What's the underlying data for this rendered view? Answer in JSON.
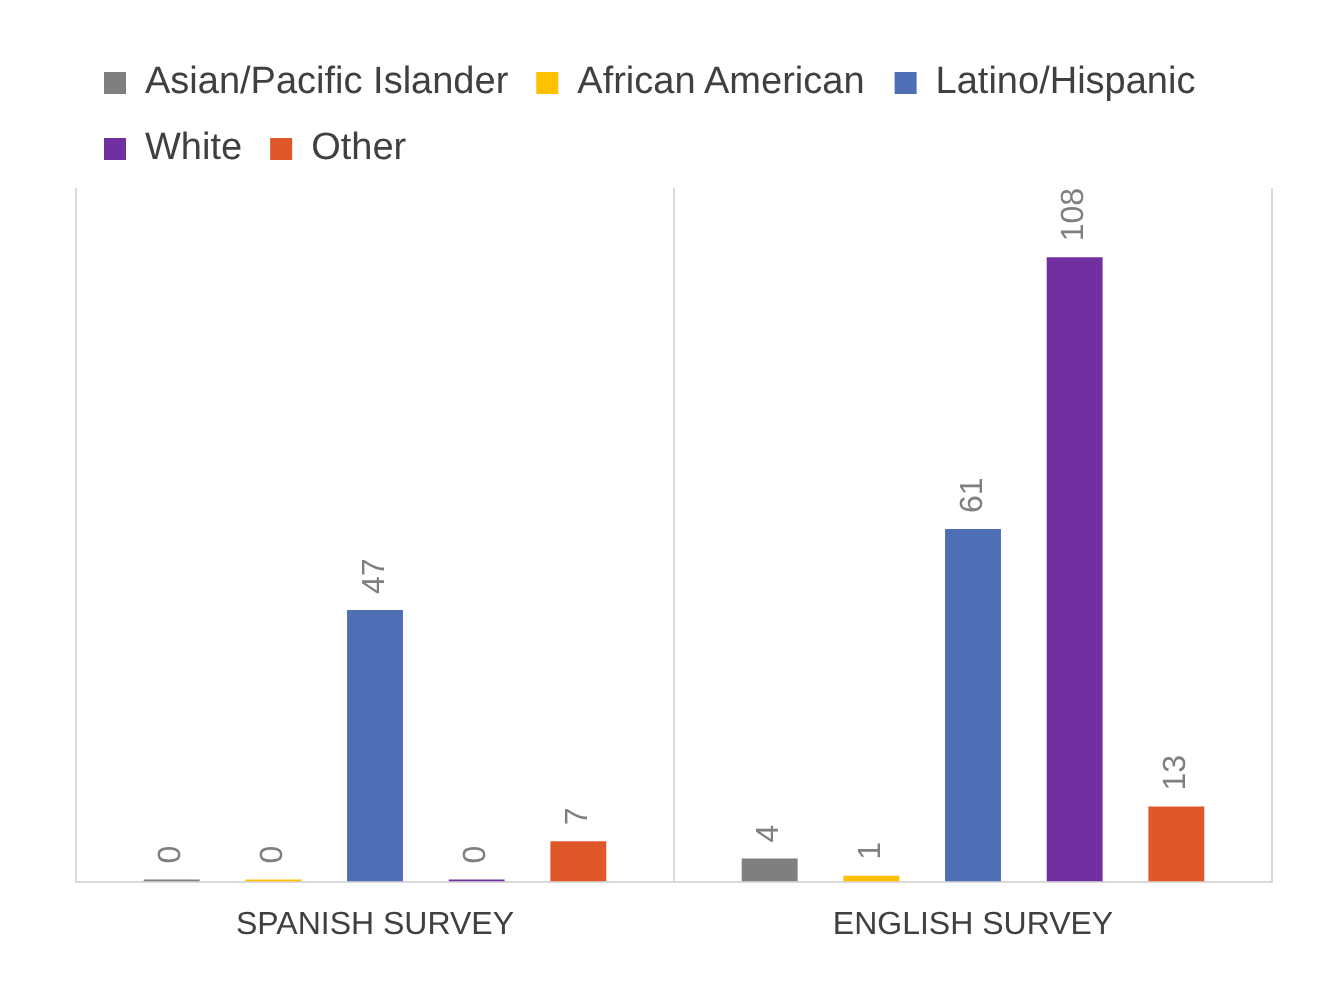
{
  "chart_data": {
    "type": "bar",
    "categories": [
      "SPANISH SURVEY",
      "ENGLISH SURVEY"
    ],
    "series": [
      {
        "name": "Asian/Pacific Islander",
        "color": "#7f7f7f",
        "values": [
          0,
          4
        ]
      },
      {
        "name": "African American",
        "color": "#ffc000",
        "values": [
          0,
          1
        ]
      },
      {
        "name": "Latino/Hispanic",
        "color": "#4e6fb5",
        "values": [
          47,
          61
        ]
      },
      {
        "name": "White",
        "color": "#7030a0",
        "values": [
          0,
          108
        ]
      },
      {
        "name": "Other",
        "color": "#e0582a",
        "values": [
          7,
          13
        ]
      }
    ],
    "data_labels": true,
    "legend": "top",
    "grid": "x"
  }
}
